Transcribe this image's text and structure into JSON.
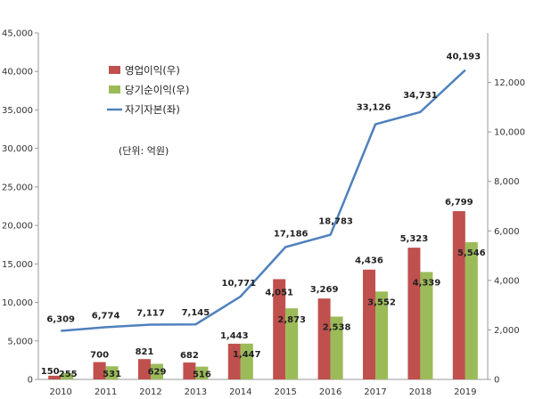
{
  "chart_data": {
    "type": "bar",
    "categories": [
      "2010",
      "2011",
      "2012",
      "2013",
      "2014",
      "2015",
      "2016",
      "2017",
      "2018",
      "2019"
    ],
    "series": [
      {
        "name": "영업이익(우)",
        "kind": "bar",
        "axis": "right",
        "color": "#c0504d",
        "values": [
          150,
          700,
          821,
          682,
          1443,
          4051,
          3269,
          4436,
          5323,
          6799
        ],
        "labels": [
          "150",
          "700",
          "821",
          "682",
          "1,443",
          "4,051",
          "3,269",
          "4,436",
          "5,323",
          "6,799"
        ]
      },
      {
        "name": "당기순이익(우)",
        "kind": "bar",
        "axis": "right",
        "color": "#9bbb59",
        "values": [
          255,
          531,
          629,
          516,
          1447,
          2873,
          2538,
          3552,
          4339,
          5546
        ],
        "labels": [
          "255",
          "531",
          "629",
          "516",
          "1,447",
          "2,873",
          "2,538",
          "3,552",
          "4,339",
          "5,546"
        ]
      },
      {
        "name": "자기자본(좌)",
        "kind": "line",
        "axis": "left",
        "color": "#4f81bd",
        "values": [
          6309,
          6774,
          7117,
          7145,
          10771,
          17186,
          18783,
          33126,
          34731,
          40193
        ],
        "labels": [
          "6,309",
          "6,774",
          "7,117",
          "7,145",
          "10,771",
          "17,186",
          "18,783",
          "33,126",
          "34,731",
          "40,193"
        ]
      }
    ],
    "left_axis": {
      "min": 0,
      "max": 45000,
      "ticks": [
        "0",
        "5,000",
        "10,000",
        "15,000",
        "20,000",
        "25,000",
        "30,000",
        "35,000",
        "40,000",
        "45,000"
      ]
    },
    "right_axis": {
      "min": 0,
      "max": 14000,
      "ticks": [
        "0",
        "2,000",
        "4,000",
        "6,000",
        "8,000",
        "10,000",
        "12,000"
      ]
    },
    "unit_note": "(단위: 억원)",
    "legend_position": "top-left",
    "grid": false
  }
}
